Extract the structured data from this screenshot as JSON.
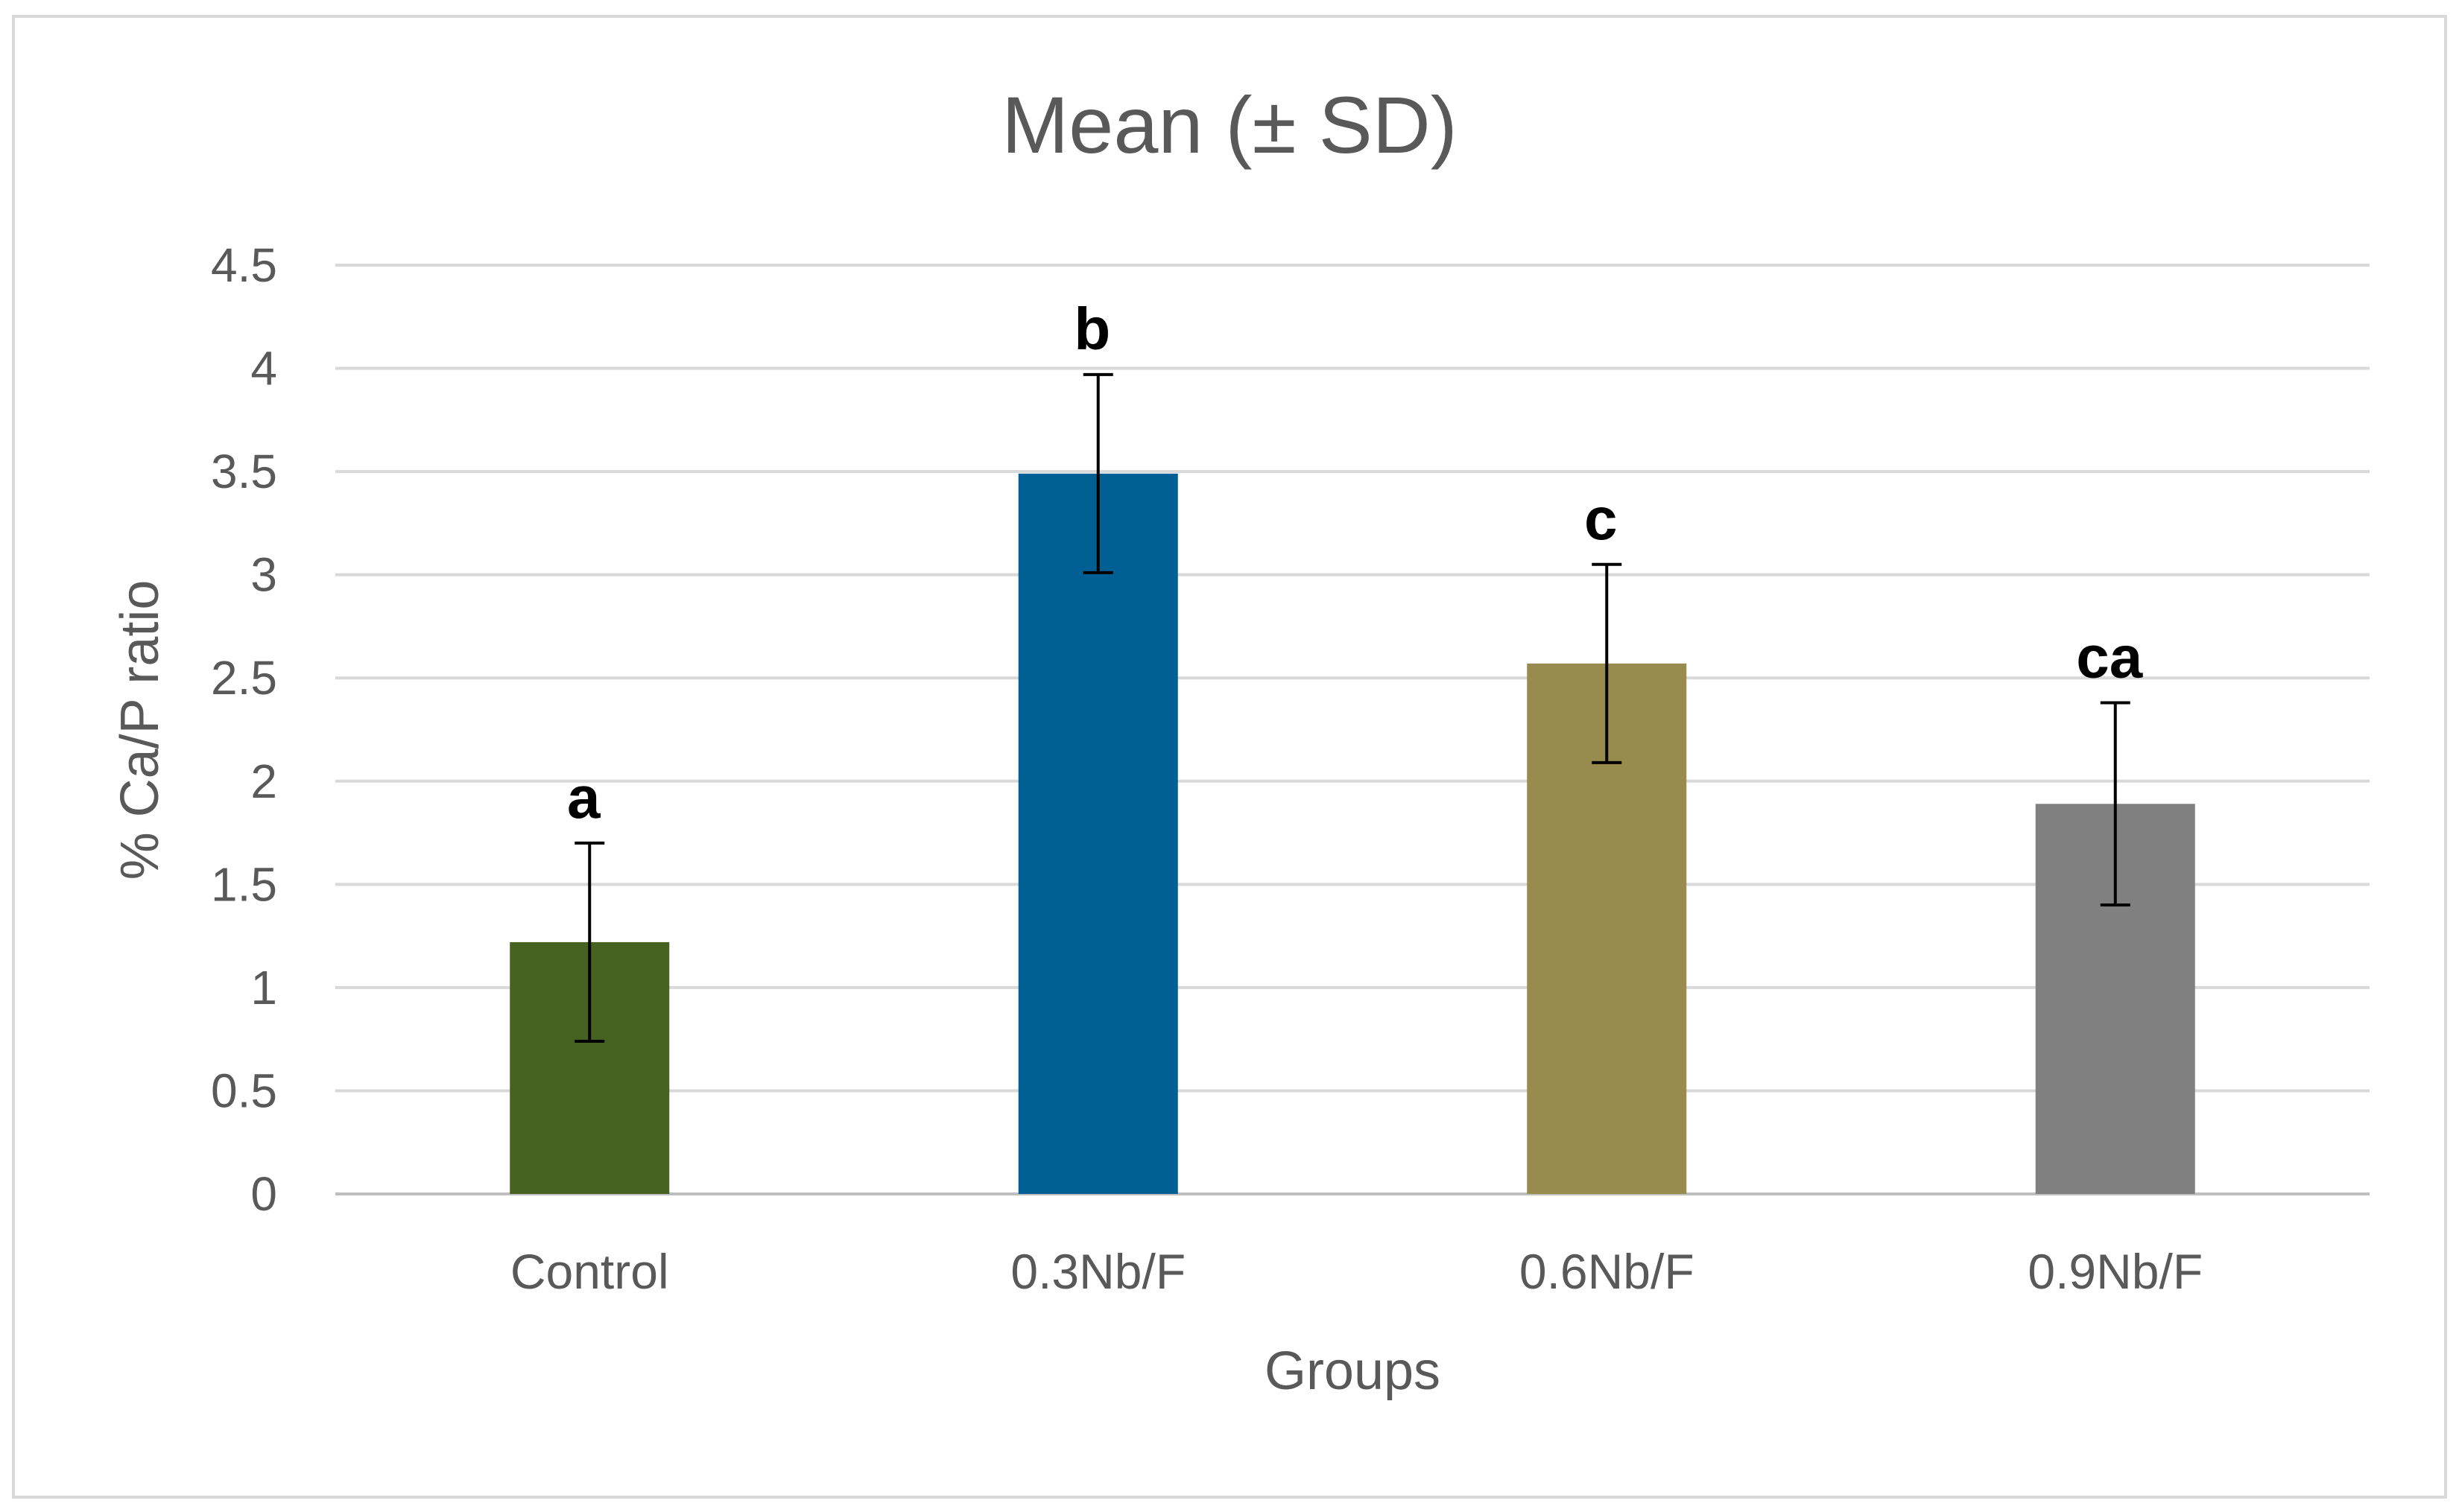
{
  "chart_data": {
    "type": "bar",
    "title": "Mean (± SD)",
    "xlabel": "Groups",
    "ylabel": "% Ca/P ratio",
    "ylim": [
      0,
      4.5
    ],
    "yticks": [
      "0",
      "0.5",
      "1",
      "1.5",
      "2",
      "2.5",
      "3",
      "3.5",
      "4",
      "4.5"
    ],
    "categories": [
      "Control",
      "0.3Nb/F",
      "0.6Nb/F",
      "0.9Nb/F"
    ],
    "values": [
      1.22,
      3.49,
      2.57,
      1.89
    ],
    "errors": [
      0.48,
      0.48,
      0.48,
      0.49
    ],
    "significance_labels": [
      "a",
      "b",
      "c",
      "ca"
    ],
    "bar_colors": [
      "#466221",
      "#005F93",
      "#978C4E",
      "#808080"
    ],
    "grid": true,
    "legend": "none"
  }
}
